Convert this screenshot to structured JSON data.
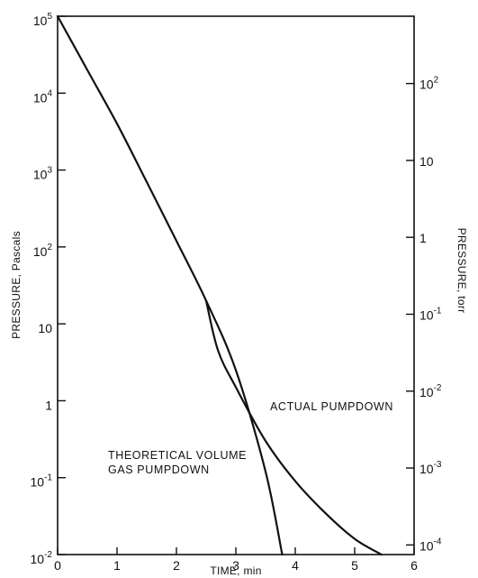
{
  "chart_data": {
    "type": "line",
    "xlabel": "TIME, min",
    "ylabel_left": "PRESSURE, Pascals",
    "ylabel_right": "PRESSURE, torr",
    "xlim": [
      0,
      6
    ],
    "ylim_pa": [
      0.01,
      100000
    ],
    "y_scale": "log",
    "grid": false,
    "x_ticks": [
      {
        "value": 0,
        "label": "0"
      },
      {
        "value": 1,
        "label": "1"
      },
      {
        "value": 2,
        "label": "2"
      },
      {
        "value": 3,
        "label": "3"
      },
      {
        "value": 4,
        "label": "4"
      },
      {
        "value": 5,
        "label": "5"
      },
      {
        "value": 6,
        "label": "6"
      }
    ],
    "y_ticks_left": [
      {
        "value": 100000,
        "base": "10",
        "exp": "5"
      },
      {
        "value": 10000,
        "base": "10",
        "exp": "4"
      },
      {
        "value": 1000,
        "base": "10",
        "exp": "3"
      },
      {
        "value": 100,
        "base": "10",
        "exp": "2"
      },
      {
        "value": 10,
        "base": "10",
        "exp": ""
      },
      {
        "value": 1,
        "base": "1",
        "exp": ""
      },
      {
        "value": 0.1,
        "base": "10",
        "exp": "-1"
      },
      {
        "value": 0.01,
        "base": "10",
        "exp": "-2"
      }
    ],
    "y_ticks_right": [
      {
        "value_torr": 100,
        "base": "10",
        "exp": "2"
      },
      {
        "value_torr": 10,
        "base": "10",
        "exp": ""
      },
      {
        "value_torr": 1,
        "base": "1",
        "exp": ""
      },
      {
        "value_torr": 0.1,
        "base": "10",
        "exp": "-1"
      },
      {
        "value_torr": 0.01,
        "base": "10",
        "exp": "-2"
      },
      {
        "value_torr": 0.001,
        "base": "10",
        "exp": "-3"
      },
      {
        "value_torr": 0.0001,
        "base": "10",
        "exp": "-4"
      }
    ],
    "series": [
      {
        "name": "THEORETICAL VOLUME GAS PUMPDOWN",
        "x": [
          0,
          0.5,
          1,
          1.5,
          2,
          2.5,
          3,
          3.5,
          3.78
        ],
        "y": [
          100000,
          20000,
          4000,
          700,
          120,
          20,
          2.5,
          0.12,
          0.01
        ]
      },
      {
        "name": "ACTUAL PUMPDOWN",
        "x": [
          2.5,
          2.7,
          3,
          3.5,
          4,
          4.5,
          5,
          5.45
        ],
        "y": [
          20,
          4.5,
          1.5,
          0.3,
          0.09,
          0.035,
          0.016,
          0.01
        ]
      }
    ],
    "annotations": [
      {
        "lines": [
          "ACTUAL PUMPDOWN"
        ],
        "series": 1
      },
      {
        "lines": [
          "THEORETICAL VOLUME",
          "GAS PUMPDOWN"
        ],
        "series": 0
      }
    ]
  }
}
